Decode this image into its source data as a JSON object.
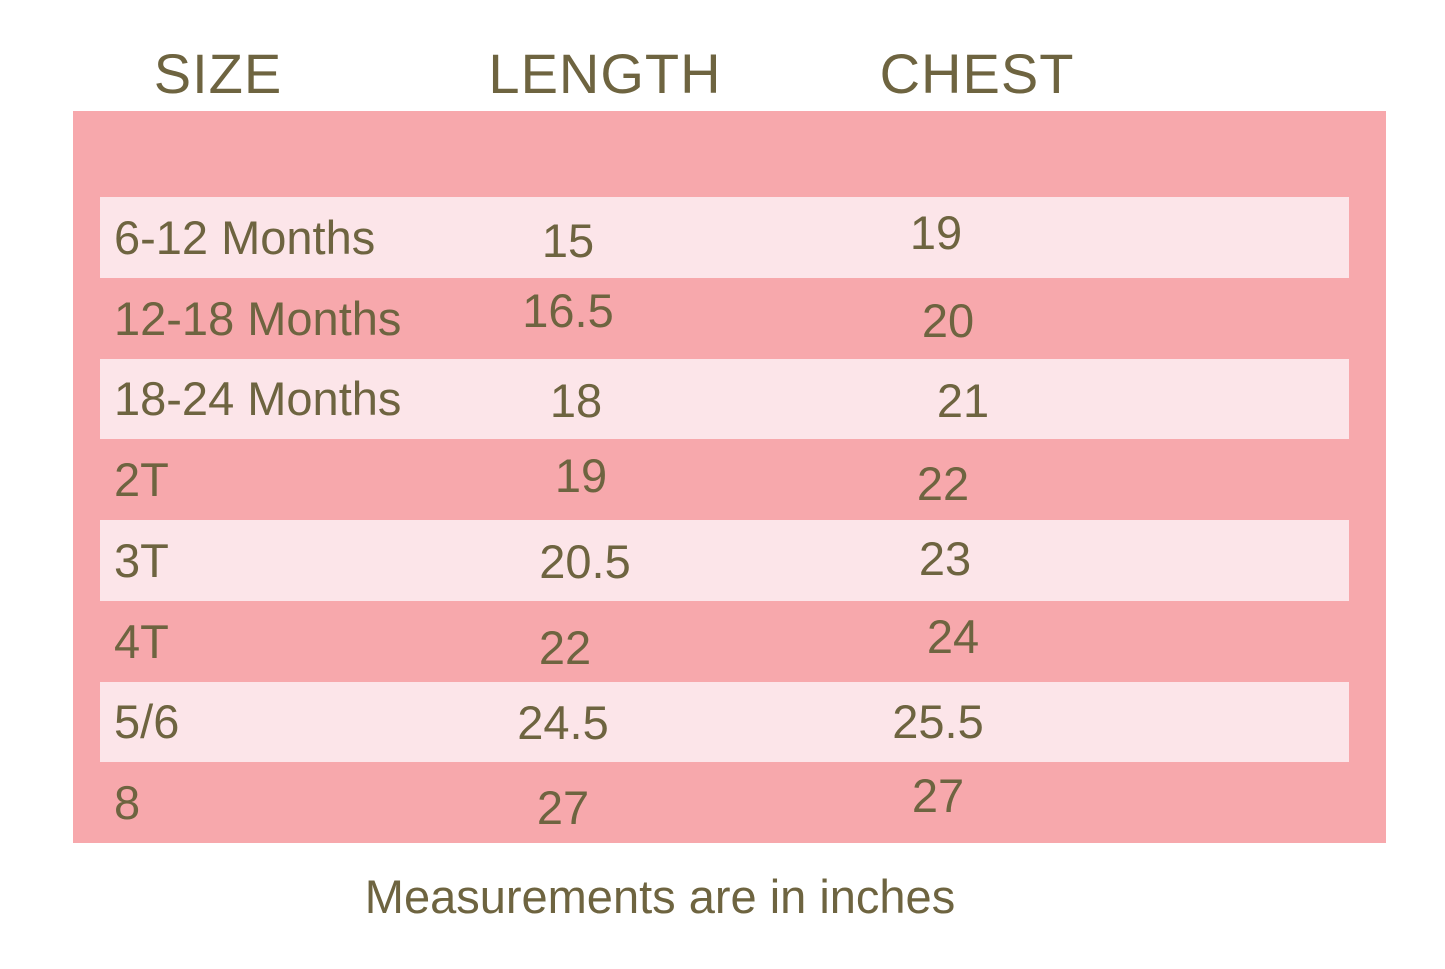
{
  "colors": {
    "background": "#ffffff",
    "panel": "#f7a8ac",
    "stripe": "#fce5e9",
    "text": "#6e6440"
  },
  "header": {
    "size": "SIZE",
    "length": "LENGTH",
    "chest": "CHEST"
  },
  "table": {
    "rows": [
      {
        "size": "6-12 Months",
        "length": "15",
        "chest": "19"
      },
      {
        "size": "12-18 Months",
        "length": "16.5",
        "chest": "20"
      },
      {
        "size": "18-24 Months",
        "length": "18",
        "chest": "21"
      },
      {
        "size": "2T",
        "length": "19",
        "chest": "22"
      },
      {
        "size": "3T",
        "length": "20.5",
        "chest": "23"
      },
      {
        "size": "4T",
        "length": "22",
        "chest": "24"
      },
      {
        "size": "5/6",
        "length": "24.5",
        "chest": "25.5"
      },
      {
        "size": "8",
        "length": "27",
        "chest": "27"
      }
    ]
  },
  "footer": {
    "note": "Measurements are in inches"
  },
  "chart_data": {
    "type": "table",
    "columns": [
      "SIZE",
      "LENGTH",
      "CHEST"
    ],
    "rows": [
      [
        "6-12 Months",
        15,
        19
      ],
      [
        "12-18 Months",
        16.5,
        20
      ],
      [
        "18-24 Months",
        18,
        21
      ],
      [
        "2T",
        19,
        22
      ],
      [
        "3T",
        20.5,
        23
      ],
      [
        "4T",
        22,
        24
      ],
      [
        "5/6",
        24.5,
        25.5
      ],
      [
        "8",
        27,
        27
      ]
    ],
    "units": "inches",
    "note": "Measurements are in inches"
  }
}
